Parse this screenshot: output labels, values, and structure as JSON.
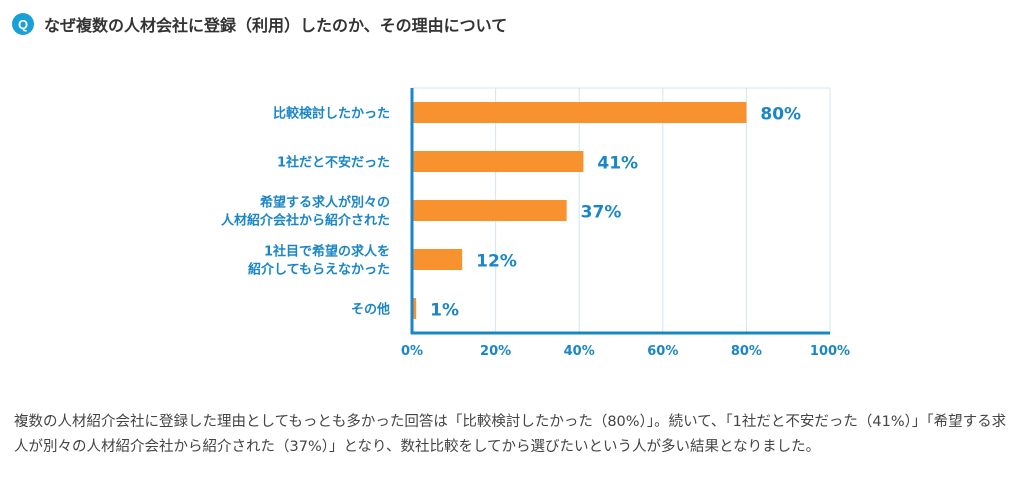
{
  "header": {
    "badge": "Q",
    "title": "なぜ複数の人材会社に登録（利用）したのか、その理由について"
  },
  "chart_data": {
    "type": "bar",
    "orientation": "horizontal",
    "categories": [
      [
        "比較検討したかった"
      ],
      [
        "1社だと不安だった"
      ],
      [
        "希望する求人が別々の",
        "人材紹介会社から紹介された"
      ],
      [
        "1社目で希望の求人を",
        "紹介してもらえなかった"
      ],
      [
        "その他"
      ]
    ],
    "values": [
      80,
      41,
      37,
      12,
      1
    ],
    "value_labels": [
      "80%",
      "41%",
      "37%",
      "12%",
      "1%"
    ],
    "xlim": [
      0,
      100
    ],
    "xticks": [
      "0%",
      "20%",
      "40%",
      "60%",
      "80%",
      "100%"
    ],
    "bar_color": "#f7922f",
    "axis_color": "#1a86c8",
    "label_color": "#1a86c8",
    "grid": true
  },
  "description": "複数の人材紹介会社に登録した理由としてもっとも多かった回答は「比較検討したかった（80%）」。続いて、「1社だと不安だった（41%）」「希望する求人が別々の人材紹介会社から紹介された（37%）」となり、数社比較をしてから選びたいという人が多い結果となりました。"
}
